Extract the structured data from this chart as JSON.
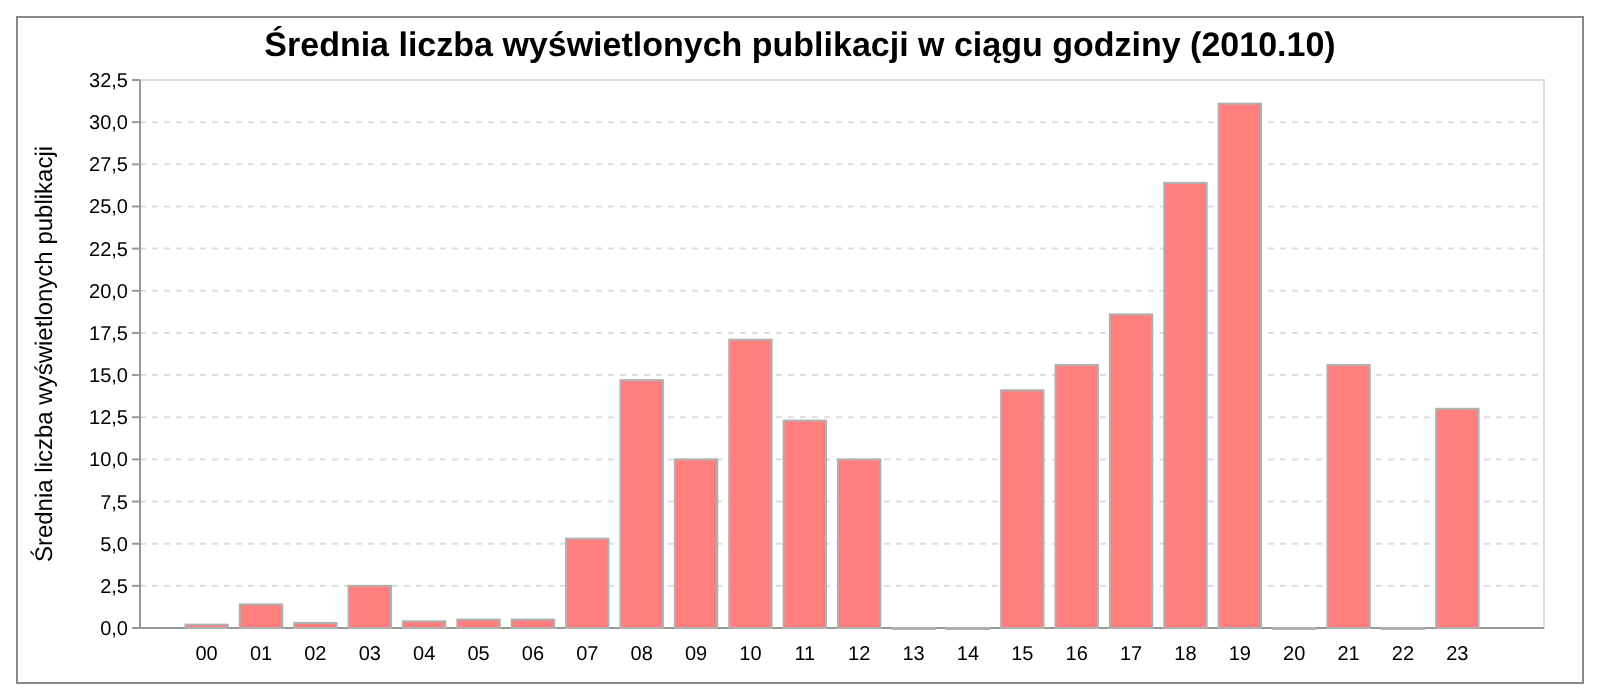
{
  "chart_data": {
    "type": "bar",
    "title": "Średnia liczba wyświetlonych publikacji w ciągu godziny (2010.10)",
    "ylabel": "Średnia liczba wyświetlonych publikacji",
    "categories": [
      "00",
      "01",
      "02",
      "03",
      "04",
      "05",
      "06",
      "07",
      "08",
      "09",
      "10",
      "11",
      "12",
      "13",
      "14",
      "15",
      "16",
      "17",
      "18",
      "19",
      "20",
      "21",
      "22",
      "23"
    ],
    "values": [
      0.2,
      1.4,
      0.3,
      2.5,
      0.4,
      0.5,
      0.5,
      5.3,
      14.7,
      10.0,
      17.1,
      12.3,
      10.0,
      0,
      0,
      14.1,
      15.6,
      18.6,
      26.4,
      31.1,
      0,
      15.6,
      0,
      13.0
    ],
    "color": "#ff7f7f",
    "ylim": [
      0,
      32.5
    ],
    "yticks": [
      {
        "value": 0,
        "label": "0,0"
      },
      {
        "value": 2.5,
        "label": "2,5"
      },
      {
        "value": 5,
        "label": "5,0"
      },
      {
        "value": 7.5,
        "label": "7,5"
      },
      {
        "value": 10,
        "label": "10,0"
      },
      {
        "value": 12.5,
        "label": "12,5"
      },
      {
        "value": 15,
        "label": "15,0"
      },
      {
        "value": 17.5,
        "label": "17,5"
      },
      {
        "value": 20,
        "label": "20,0"
      },
      {
        "value": 22.5,
        "label": "22,5"
      },
      {
        "value": 25,
        "label": "25,0"
      },
      {
        "value": 27.5,
        "label": "27,5"
      },
      {
        "value": 30,
        "label": "30,0"
      },
      {
        "value": 32.5,
        "label": "32,5"
      }
    ],
    "grid": "y"
  }
}
